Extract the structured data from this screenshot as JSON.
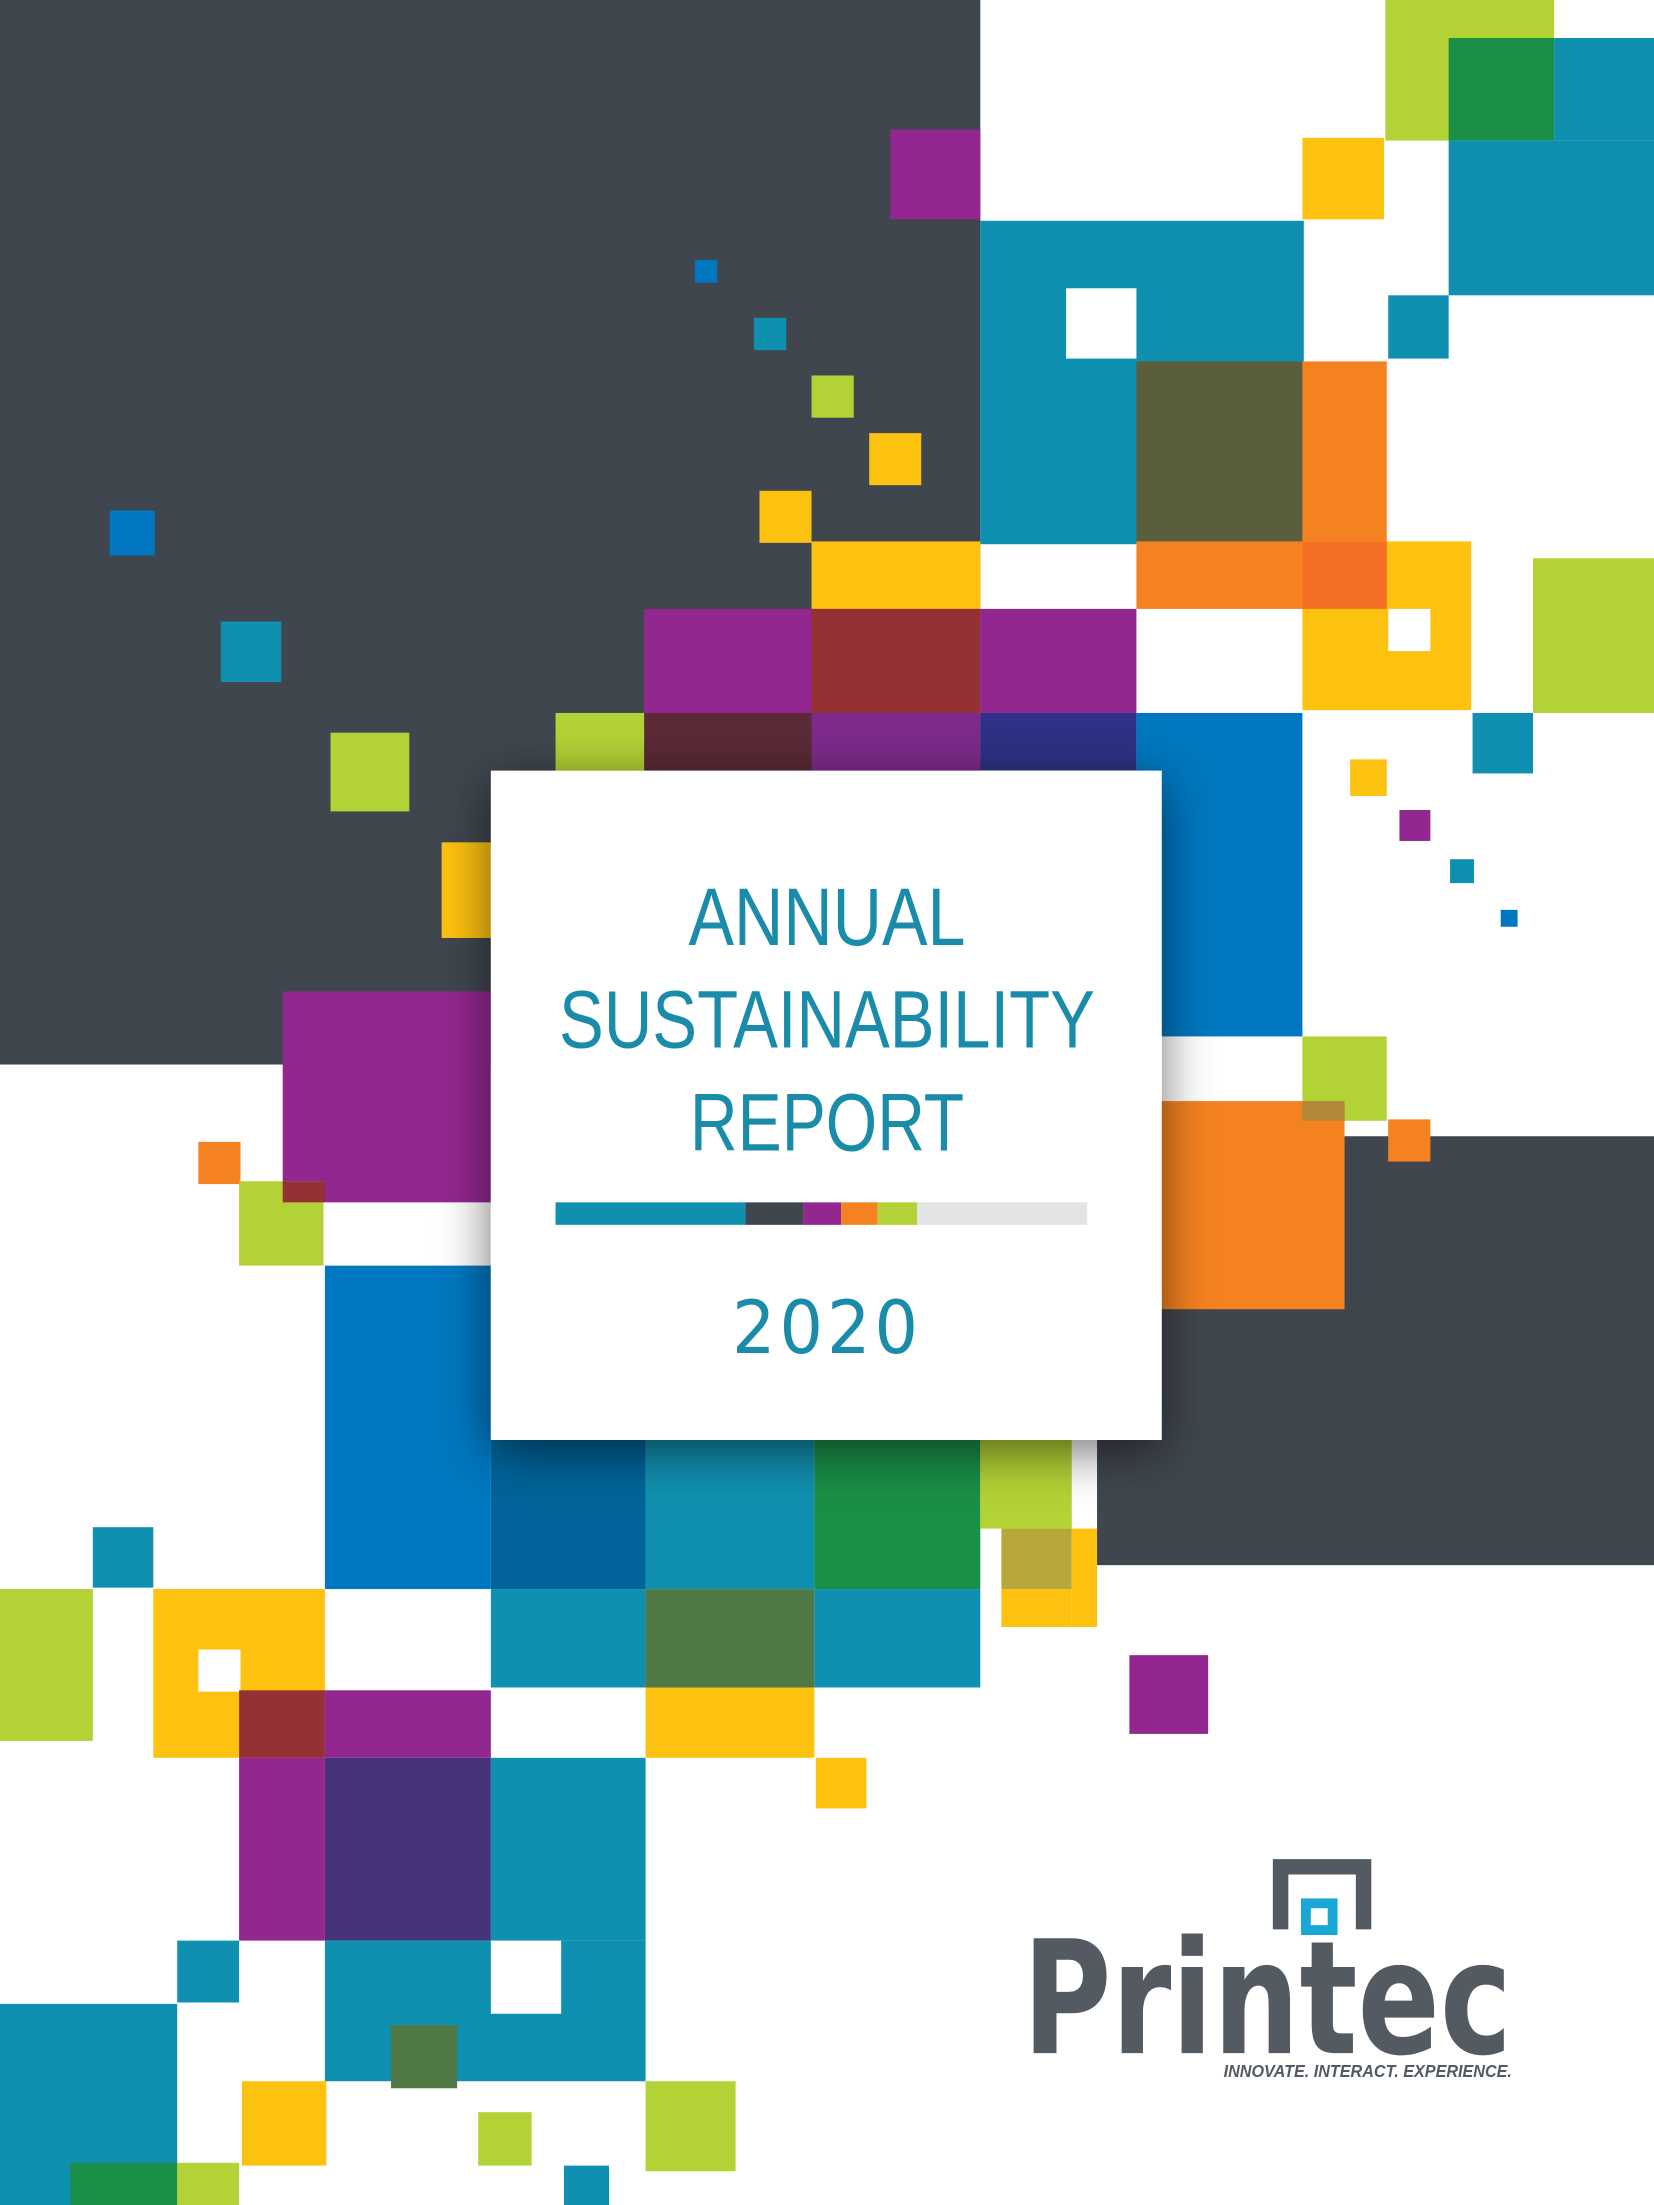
{
  "cover": {
    "title_lines": [
      "ANNUAL",
      "SUSTAINABILITY",
      "REPORT"
    ],
    "year": "2020",
    "logo": {
      "name": "Printec",
      "tagline": "INNOVATE. INTERACT. EXPERIENCE."
    }
  }
}
